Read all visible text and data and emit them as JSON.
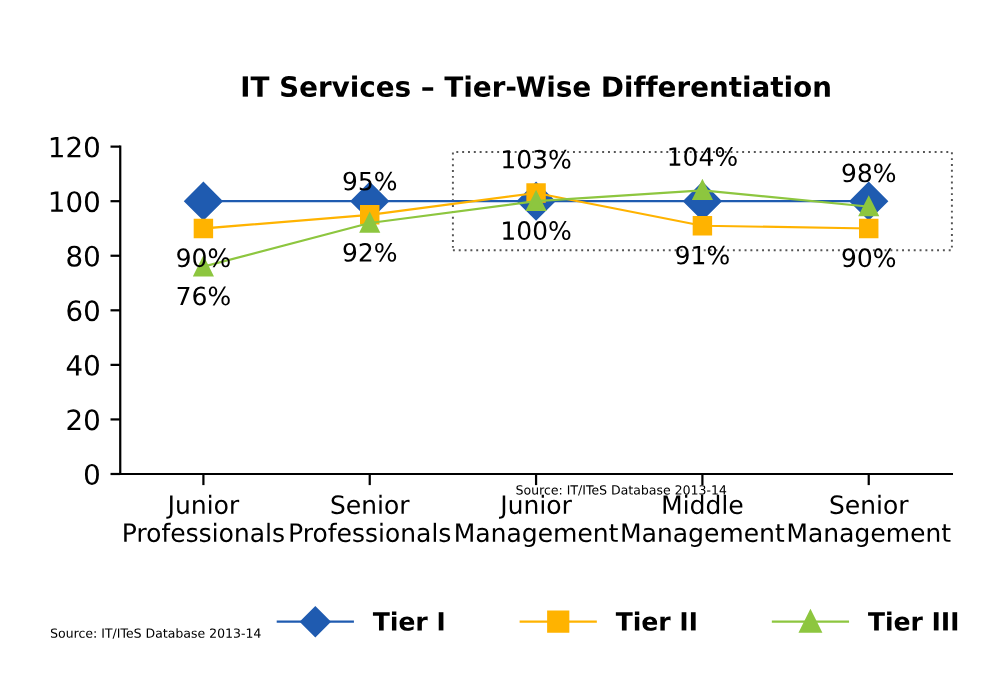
{
  "chart_data": {
    "type": "line",
    "title": "IT Services – Tier-Wise Differentiation",
    "categories": [
      "Junior\nProfessionals",
      "Senior\nProfessionals",
      "Junior\nManagement",
      "Middle\nManagement",
      "Senior\nManagement"
    ],
    "series": [
      {
        "name": "Tier I",
        "color": "#1f5bb0",
        "marker": "diamond",
        "values": [
          100,
          100,
          100,
          100,
          100
        ]
      },
      {
        "name": "Tier II",
        "color": "#ffb300",
        "marker": "square",
        "values": [
          90,
          95,
          103,
          91,
          90
        ],
        "value_labels": [
          "90%",
          "95%",
          "103%",
          "91%",
          "90%"
        ]
      },
      {
        "name": "Tier III",
        "color": "#8dc63f",
        "marker": "triangle",
        "values": [
          76,
          92,
          100,
          104,
          98
        ],
        "value_labels": [
          "76%",
          "92%",
          "100%",
          "104%",
          "98%"
        ]
      }
    ],
    "ylim": [
      0,
      120
    ],
    "yticks": [
      0,
      20,
      40,
      60,
      80,
      100,
      120
    ],
    "grid": false,
    "legend": "bottom",
    "annotations": [
      "Source: IT/ITeS Database 2013-14",
      "Source: IT/ITeS Database 2013-14"
    ]
  }
}
